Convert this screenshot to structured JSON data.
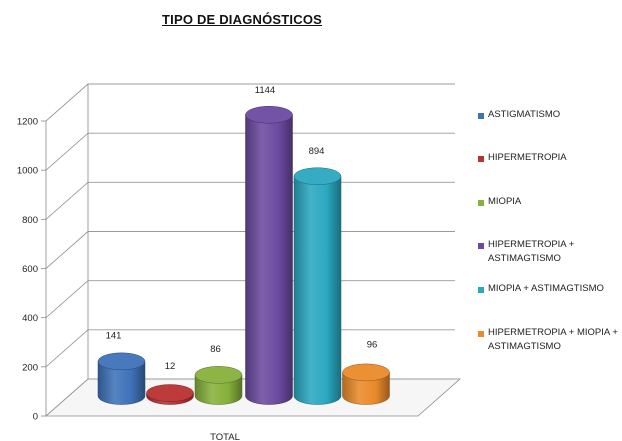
{
  "chart_data": {
    "type": "bar",
    "title": "TIPO DE DIAGNÓSTICOS",
    "categories": [
      "TOTAL"
    ],
    "ylim": [
      0,
      1200
    ],
    "yticks": [
      0,
      200,
      400,
      600,
      800,
      1000,
      1200
    ],
    "grid": true,
    "legend_position": "right",
    "series": [
      {
        "name": "ASTIGMATISMO",
        "value": 141,
        "color": "#3f72b9"
      },
      {
        "name": "HIPERMETROPIA",
        "value": 12,
        "color": "#b93131"
      },
      {
        "name": "MIOPIA",
        "value": 86,
        "color": "#86b13b"
      },
      {
        "name": "HIPERMETROPIA + ASTIMAGTISMO",
        "value": 1144,
        "color": "#6b4aa0"
      },
      {
        "name": "MIOPIA + ASTIMAGTISMO",
        "value": 894,
        "color": "#2aa8c0"
      },
      {
        "name": "HIPERMETROPIA + MIOPIA + ASTIMAGTISMO",
        "value": 96,
        "color": "#ea8a2a"
      }
    ]
  }
}
